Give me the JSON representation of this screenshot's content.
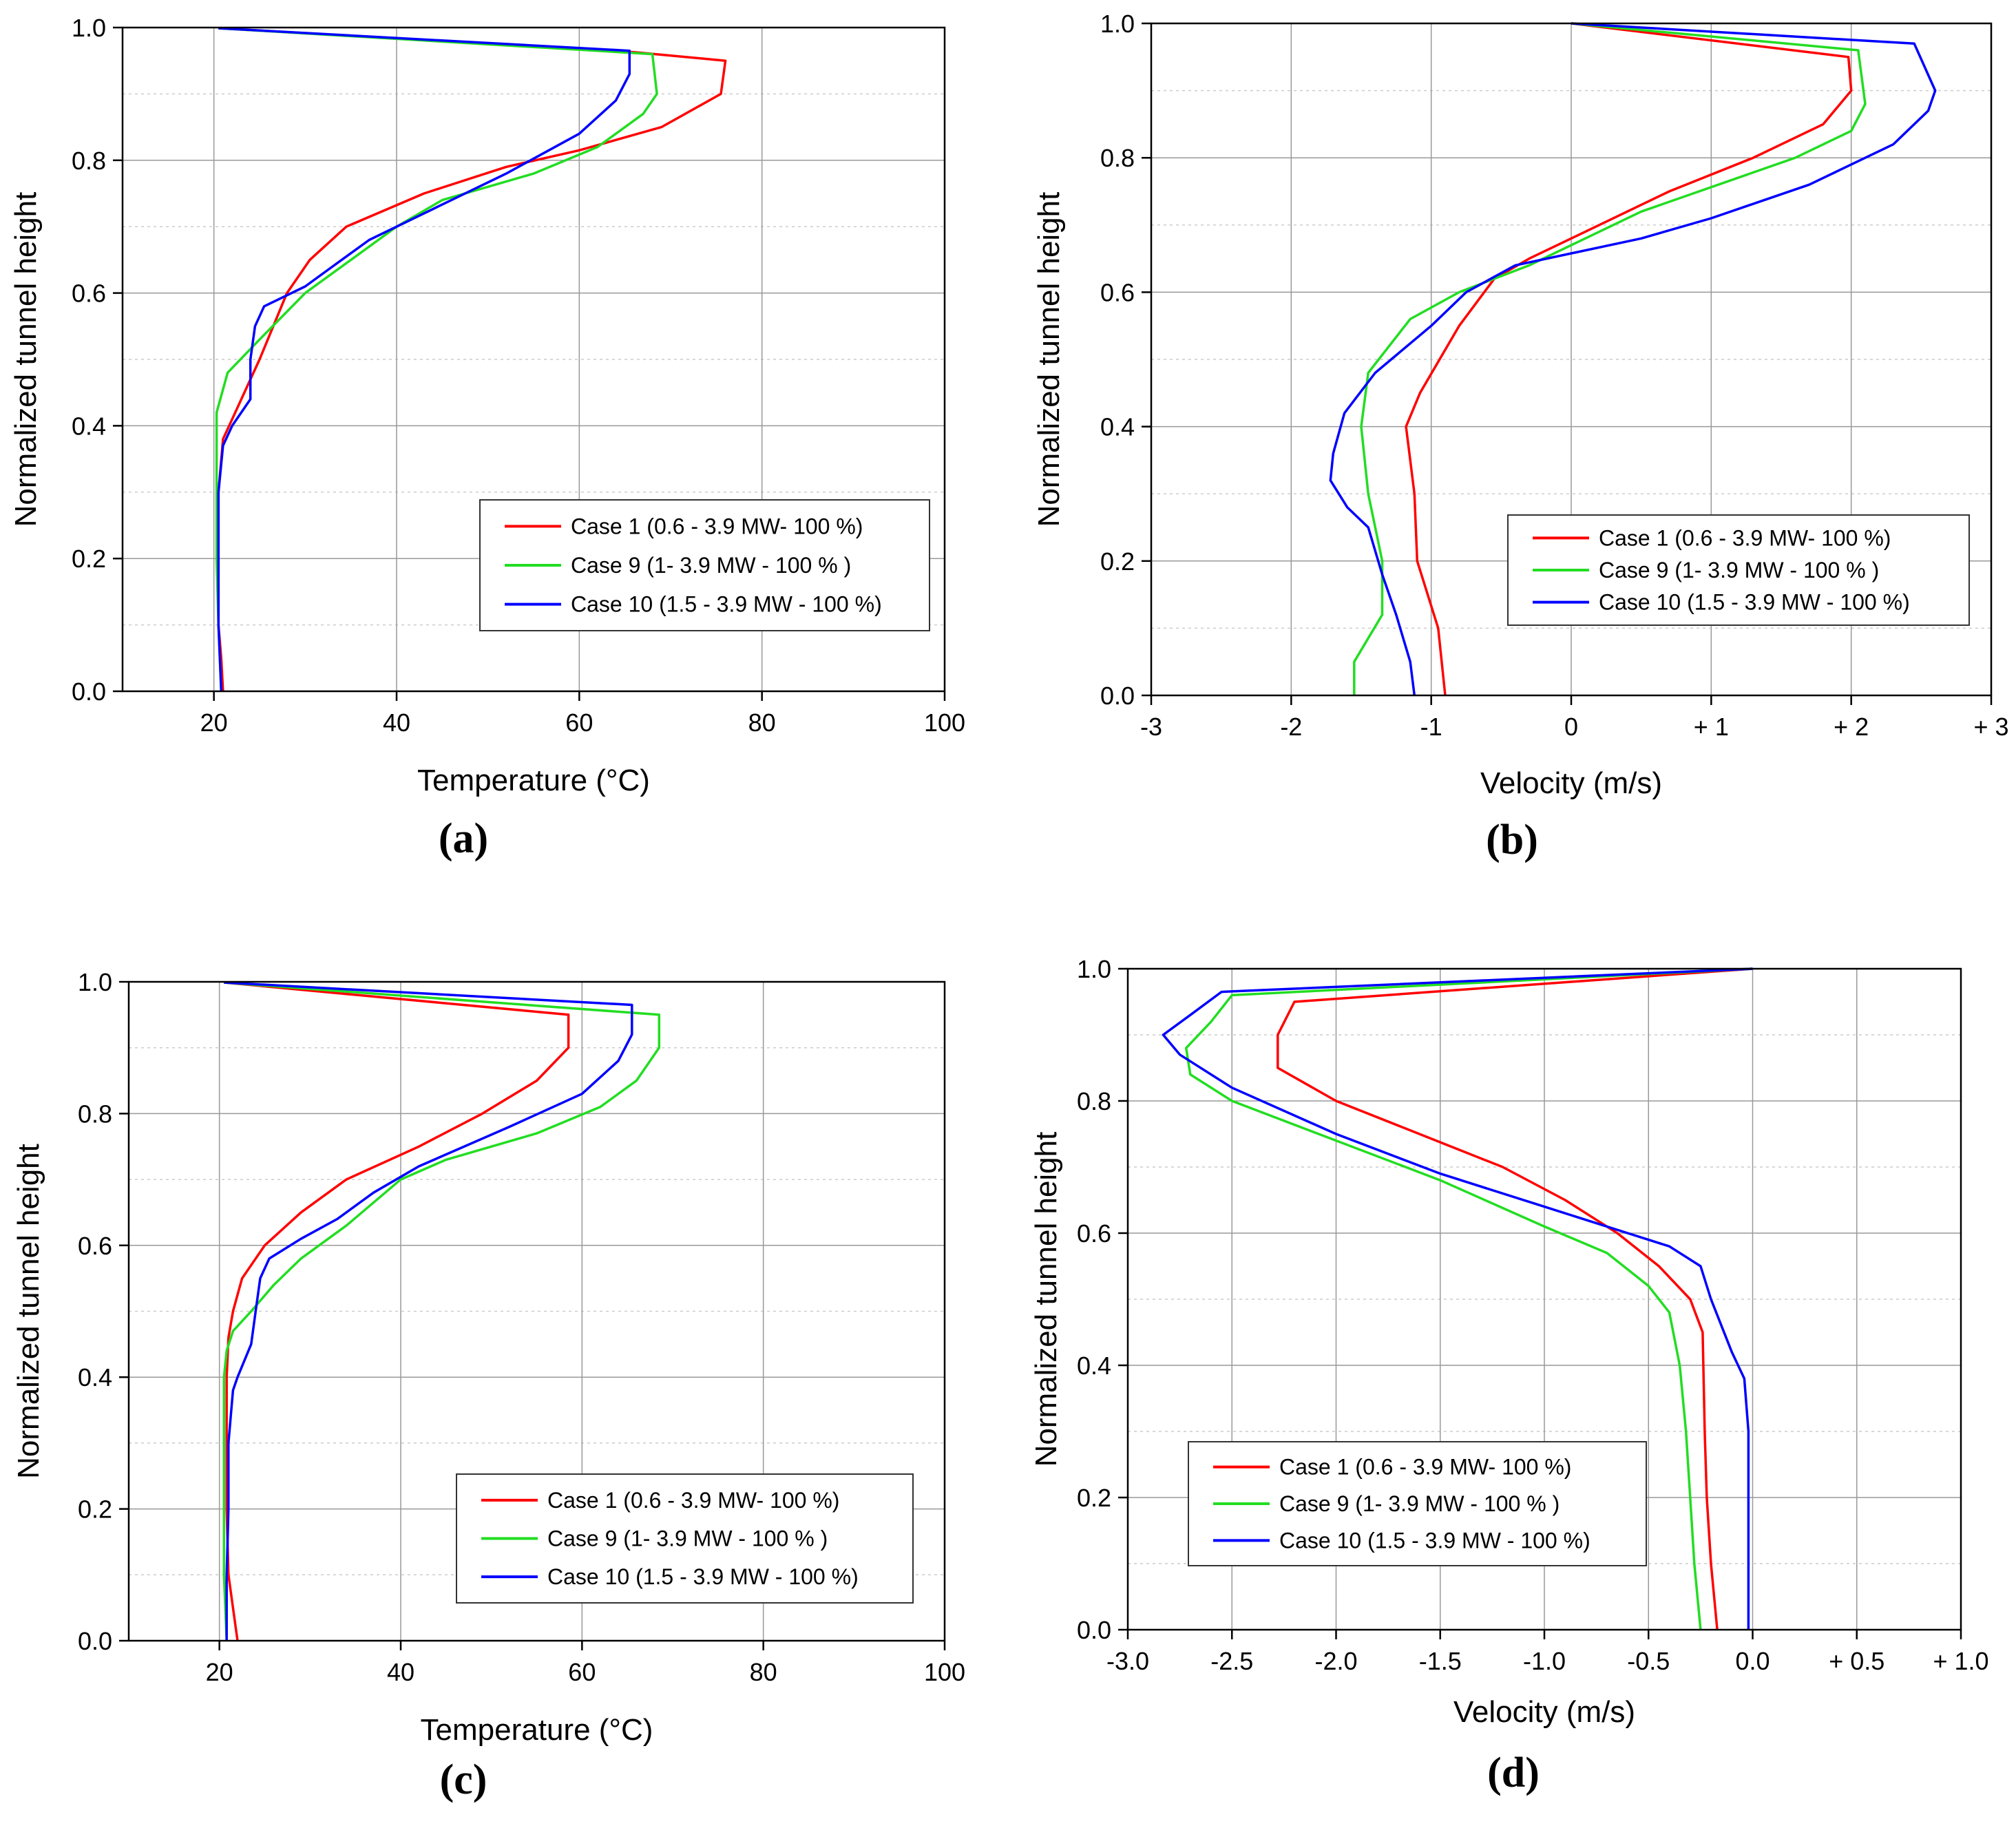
{
  "colors": {
    "case1": "#ff0000",
    "case9": "#22dd22",
    "case10": "#0000ff",
    "grid": "#999999",
    "minor_grid": "#cccccc",
    "axis": "#000000"
  },
  "chart_data": [
    {
      "panel": "(a)",
      "type": "line",
      "xlabel": "Temperature (°C)",
      "ylabel": "Normalized tunnel height",
      "xlim": [
        10,
        100
      ],
      "ylim": [
        0,
        1
      ],
      "xticks": [
        20,
        40,
        60,
        80,
        100
      ],
      "xtick_labels": [
        "20",
        "40",
        "60",
        "80",
        "100"
      ],
      "yticks": [
        0,
        0.2,
        0.4,
        0.6,
        0.8,
        1.0
      ],
      "ytick_labels": [
        "0.0",
        "0.2",
        "0.4",
        "0.6",
        "0.8",
        "1.0"
      ],
      "grid": true,
      "legend_position": "lower-right",
      "series": [
        {
          "name": "Case 1 (0.6 - 3.9 MW- 100 %)",
          "color_key": "case1",
          "points": [
            [
              21,
              0
            ],
            [
              20.8,
              0.05
            ],
            [
              20.5,
              0.1
            ],
            [
              20.5,
              0.2
            ],
            [
              20.5,
              0.3
            ],
            [
              21,
              0.38
            ],
            [
              22,
              0.41
            ],
            [
              25,
              0.5
            ],
            [
              28,
              0.6
            ],
            [
              30.5,
              0.65
            ],
            [
              34.5,
              0.7
            ],
            [
              43,
              0.75
            ],
            [
              52,
              0.79
            ],
            [
              60,
              0.815
            ],
            [
              69,
              0.85
            ],
            [
              75.5,
              0.9
            ],
            [
              76,
              0.95
            ],
            [
              66,
              0.963
            ],
            [
              20.5,
              0.999
            ]
          ]
        },
        {
          "name": "Case 9 (1- 3.9 MW - 100 % )",
          "color_key": "case9",
          "points": [
            [
              20.8,
              0
            ],
            [
              20.5,
              0.1
            ],
            [
              20.3,
              0.2
            ],
            [
              20.3,
              0.3
            ],
            [
              20.3,
              0.42
            ],
            [
              21.5,
              0.48
            ],
            [
              25,
              0.53
            ],
            [
              30,
              0.6
            ],
            [
              35,
              0.65
            ],
            [
              40,
              0.7
            ],
            [
              45,
              0.74
            ],
            [
              55,
              0.78
            ],
            [
              62,
              0.82
            ],
            [
              67,
              0.87
            ],
            [
              68.5,
              0.9
            ],
            [
              68,
              0.96
            ],
            [
              20.5,
              0.999
            ]
          ]
        },
        {
          "name": "Case 10 (1.5 - 3.9 MW - 100 %)",
          "color_key": "case10",
          "points": [
            [
              20.8,
              0
            ],
            [
              20.5,
              0.1
            ],
            [
              20.5,
              0.2
            ],
            [
              20.5,
              0.3
            ],
            [
              21,
              0.37
            ],
            [
              22,
              0.4
            ],
            [
              24,
              0.44
            ],
            [
              24,
              0.5
            ],
            [
              24.5,
              0.55
            ],
            [
              25.5,
              0.58
            ],
            [
              30,
              0.61
            ],
            [
              33,
              0.64
            ],
            [
              37,
              0.68
            ],
            [
              43,
              0.72
            ],
            [
              52,
              0.78
            ],
            [
              60,
              0.84
            ],
            [
              64,
              0.89
            ],
            [
              65.5,
              0.93
            ],
            [
              65.5,
              0.965
            ],
            [
              20.5,
              0.999
            ]
          ]
        }
      ]
    },
    {
      "panel": "(b)",
      "type": "line",
      "xlabel": "Velocity (m/s)",
      "ylabel": "Normalized tunnel height",
      "xlim": [
        -3,
        3
      ],
      "ylim": [
        0,
        1
      ],
      "xticks": [
        -3,
        -2,
        -1,
        0,
        1,
        2,
        3
      ],
      "xtick_labels": [
        "-3",
        "-2",
        "-1",
        "0",
        "+ 1",
        "+ 2",
        "+ 3"
      ],
      "yticks": [
        0,
        0.2,
        0.4,
        0.6,
        0.8,
        1.0
      ],
      "ytick_labels": [
        "0.0",
        "0.2",
        "0.4",
        "0.6",
        "0.8",
        "1.0"
      ],
      "grid": true,
      "legend_position": "lower-right",
      "series": [
        {
          "name": "Case 1 (0.6 - 3.9 MW- 100 %)",
          "color_key": "case1",
          "points": [
            [
              -0.9,
              0
            ],
            [
              -0.95,
              0.1
            ],
            [
              -1.1,
              0.2
            ],
            [
              -1.12,
              0.3
            ],
            [
              -1.18,
              0.4
            ],
            [
              -1.08,
              0.45
            ],
            [
              -0.8,
              0.55
            ],
            [
              -0.55,
              0.62
            ],
            [
              -0.3,
              0.65
            ],
            [
              0.2,
              0.7
            ],
            [
              0.7,
              0.75
            ],
            [
              1.3,
              0.8
            ],
            [
              1.8,
              0.85
            ],
            [
              2.0,
              0.9
            ],
            [
              1.98,
              0.95
            ],
            [
              0,
              1.0
            ]
          ]
        },
        {
          "name": "Case 9 (1- 3.9 MW - 100 % )",
          "color_key": "case9",
          "points": [
            [
              -1.55,
              0
            ],
            [
              -1.55,
              0.05
            ],
            [
              -1.35,
              0.12
            ],
            [
              -1.35,
              0.2
            ],
            [
              -1.45,
              0.3
            ],
            [
              -1.5,
              0.4
            ],
            [
              -1.45,
              0.48
            ],
            [
              -1.15,
              0.56
            ],
            [
              -0.8,
              0.6
            ],
            [
              -0.3,
              0.64
            ],
            [
              0.5,
              0.72
            ],
            [
              1.6,
              0.8
            ],
            [
              2.0,
              0.84
            ],
            [
              2.1,
              0.88
            ],
            [
              2.05,
              0.96
            ],
            [
              0,
              1.0
            ]
          ]
        },
        {
          "name": "Case 10 (1.5 - 3.9 MW - 100 %)",
          "color_key": "case10",
          "points": [
            [
              -1.12,
              0
            ],
            [
              -1.15,
              0.05
            ],
            [
              -1.25,
              0.12
            ],
            [
              -1.35,
              0.18
            ],
            [
              -1.45,
              0.25
            ],
            [
              -1.6,
              0.28
            ],
            [
              -1.72,
              0.32
            ],
            [
              -1.7,
              0.36
            ],
            [
              -1.62,
              0.42
            ],
            [
              -1.4,
              0.48
            ],
            [
              -1.0,
              0.55
            ],
            [
              -0.75,
              0.6
            ],
            [
              -0.4,
              0.64
            ],
            [
              0.5,
              0.68
            ],
            [
              1.0,
              0.71
            ],
            [
              1.7,
              0.76
            ],
            [
              2.3,
              0.82
            ],
            [
              2.55,
              0.87
            ],
            [
              2.6,
              0.9
            ],
            [
              2.45,
              0.97
            ],
            [
              0,
              1.0
            ]
          ]
        }
      ]
    },
    {
      "panel": "(c)",
      "type": "line",
      "xlabel": "Temperature (°C)",
      "ylabel": "Normalized tunnel height",
      "xlim": [
        10,
        100
      ],
      "ylim": [
        0,
        1
      ],
      "xticks": [
        20,
        40,
        60,
        80,
        100
      ],
      "xtick_labels": [
        "20",
        "40",
        "60",
        "80",
        "100"
      ],
      "yticks": [
        0,
        0.2,
        0.4,
        0.6,
        0.8,
        1.0
      ],
      "ytick_labels": [
        "0.0",
        "0.2",
        "0.4",
        "0.6",
        "0.8",
        "1.0"
      ],
      "grid": true,
      "legend_position": "lower-right",
      "series": [
        {
          "name": "Case 1 (0.6 - 3.9 MW- 100 %)",
          "color_key": "case1",
          "points": [
            [
              22,
              0
            ],
            [
              21.5,
              0.05
            ],
            [
              21,
              0.1
            ],
            [
              20.8,
              0.2
            ],
            [
              20.8,
              0.3
            ],
            [
              20.8,
              0.4
            ],
            [
              21,
              0.46
            ],
            [
              21.5,
              0.5
            ],
            [
              22.5,
              0.55
            ],
            [
              25,
              0.6
            ],
            [
              29,
              0.65
            ],
            [
              34,
              0.7
            ],
            [
              42,
              0.75
            ],
            [
              49,
              0.8
            ],
            [
              55,
              0.85
            ],
            [
              58.5,
              0.9
            ],
            [
              58.5,
              0.95
            ],
            [
              20.5,
              0.999
            ]
          ]
        },
        {
          "name": "Case 9 (1- 3.9 MW - 100 % )",
          "color_key": "case9",
          "points": [
            [
              20.8,
              0
            ],
            [
              20.5,
              0.1
            ],
            [
              20.5,
              0.2
            ],
            [
              20.5,
              0.3
            ],
            [
              20.5,
              0.4
            ],
            [
              20.8,
              0.44
            ],
            [
              21.5,
              0.47
            ],
            [
              23.5,
              0.5
            ],
            [
              26,
              0.54
            ],
            [
              29,
              0.58
            ],
            [
              34,
              0.63
            ],
            [
              40,
              0.7
            ],
            [
              45,
              0.73
            ],
            [
              55,
              0.77
            ],
            [
              62,
              0.81
            ],
            [
              66,
              0.85
            ],
            [
              68.5,
              0.9
            ],
            [
              68.5,
              0.95
            ],
            [
              20.5,
              0.999
            ]
          ]
        },
        {
          "name": "Case 10 (1.5 - 3.9 MW - 100 %)",
          "color_key": "case10",
          "points": [
            [
              20.8,
              0
            ],
            [
              20.8,
              0.1
            ],
            [
              21,
              0.2
            ],
            [
              21,
              0.3
            ],
            [
              21.5,
              0.38
            ],
            [
              22,
              0.4
            ],
            [
              23.5,
              0.45
            ],
            [
              24,
              0.5
            ],
            [
              24.5,
              0.55
            ],
            [
              25.5,
              0.58
            ],
            [
              29,
              0.61
            ],
            [
              33,
              0.64
            ],
            [
              37,
              0.68
            ],
            [
              42,
              0.72
            ],
            [
              52,
              0.78
            ],
            [
              60,
              0.83
            ],
            [
              64,
              0.88
            ],
            [
              65.5,
              0.92
            ],
            [
              65.5,
              0.965
            ],
            [
              20.5,
              0.999
            ]
          ]
        }
      ]
    },
    {
      "panel": "(d)",
      "type": "line",
      "xlabel": "Velocity (m/s)",
      "ylabel": "Normalized tunnel height",
      "xlim": [
        -3,
        1
      ],
      "ylim": [
        0,
        1
      ],
      "xticks": [
        -3,
        -2.5,
        -2,
        -1.5,
        -1,
        -0.5,
        0,
        0.5,
        1
      ],
      "xtick_labels": [
        "-3.0",
        "-2.5",
        "-2.0",
        "-1.5",
        "-1.0",
        "-0.5",
        "0.0",
        "+ 0.5",
        "+ 1.0"
      ],
      "yticks": [
        0,
        0.2,
        0.4,
        0.6,
        0.8,
        1.0
      ],
      "ytick_labels": [
        "0.0",
        "0.2",
        "0.4",
        "0.6",
        "0.8",
        "1.0"
      ],
      "grid": true,
      "legend_position": "lower-left",
      "series": [
        {
          "name": "Case 1 (0.6 - 3.9 MW- 100 %)",
          "color_key": "case1",
          "points": [
            [
              -0.17,
              0
            ],
            [
              -0.2,
              0.1
            ],
            [
              -0.22,
              0.2
            ],
            [
              -0.23,
              0.3
            ],
            [
              -0.24,
              0.45
            ],
            [
              -0.3,
              0.5
            ],
            [
              -0.45,
              0.55
            ],
            [
              -0.65,
              0.6
            ],
            [
              -0.9,
              0.65
            ],
            [
              -1.2,
              0.7
            ],
            [
              -1.6,
              0.75
            ],
            [
              -2.0,
              0.8
            ],
            [
              -2.28,
              0.85
            ],
            [
              -2.28,
              0.9
            ],
            [
              -2.2,
              0.95
            ],
            [
              0,
              1.0
            ]
          ]
        },
        {
          "name": "Case 9 (1- 3.9 MW - 100 % )",
          "color_key": "case9",
          "points": [
            [
              -0.25,
              0
            ],
            [
              -0.28,
              0.1
            ],
            [
              -0.3,
              0.2
            ],
            [
              -0.32,
              0.3
            ],
            [
              -0.35,
              0.4
            ],
            [
              -0.4,
              0.48
            ],
            [
              -0.5,
              0.52
            ],
            [
              -0.7,
              0.57
            ],
            [
              -1.0,
              0.61
            ],
            [
              -1.5,
              0.68
            ],
            [
              -2.0,
              0.74
            ],
            [
              -2.5,
              0.8
            ],
            [
              -2.7,
              0.84
            ],
            [
              -2.72,
              0.88
            ],
            [
              -2.6,
              0.92
            ],
            [
              -2.5,
              0.96
            ],
            [
              0,
              1.0
            ]
          ]
        },
        {
          "name": "Case 10 (1.5 - 3.9 MW - 100 %)",
          "color_key": "case10",
          "points": [
            [
              -0.02,
              0
            ],
            [
              -0.02,
              0.1
            ],
            [
              -0.02,
              0.2
            ],
            [
              -0.02,
              0.3
            ],
            [
              -0.04,
              0.38
            ],
            [
              -0.1,
              0.42
            ],
            [
              -0.2,
              0.5
            ],
            [
              -0.25,
              0.55
            ],
            [
              -0.4,
              0.58
            ],
            [
              -0.6,
              0.6
            ],
            [
              -1.0,
              0.64
            ],
            [
              -1.5,
              0.69
            ],
            [
              -2.0,
              0.75
            ],
            [
              -2.5,
              0.82
            ],
            [
              -2.75,
              0.87
            ],
            [
              -2.83,
              0.9
            ],
            [
              -2.7,
              0.93
            ],
            [
              -2.55,
              0.965
            ],
            [
              0,
              1.0
            ]
          ]
        }
      ]
    }
  ]
}
